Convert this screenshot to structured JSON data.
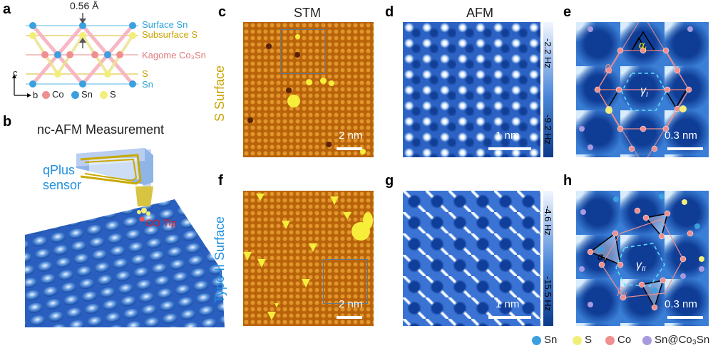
{
  "panel_labels": {
    "a": "a",
    "b": "b",
    "c": "c",
    "d": "d",
    "e": "e",
    "f": "f",
    "g": "g",
    "h": "h"
  },
  "panel_a": {
    "spacing": "0.56 Å",
    "layers": [
      {
        "text": "Surface Sn",
        "color": "#2aa3d8"
      },
      {
        "text": "Subsurface S",
        "color": "#c9a200"
      },
      {
        "text": "Kagome Co₃Sn",
        "color": "#e07a7a"
      },
      {
        "text": "S",
        "color": "#c9a200"
      },
      {
        "text": "Sn",
        "color": "#2aa3d8"
      }
    ],
    "axis_c": "c",
    "axis_b": "b",
    "legend": [
      {
        "text": "Co"
      },
      {
        "text": "Sn"
      },
      {
        "text": "S"
      }
    ]
  },
  "panel_b": {
    "title": "nc-AFM Measurement",
    "sensor_line1": "qPlus",
    "sensor_line2": "sensor",
    "tip": "CO Tip"
  },
  "columns": {
    "stm": "STM",
    "afm": "AFM"
  },
  "row_labels": {
    "top": "S Surface",
    "bottom": "Type-II Surface"
  },
  "scale_bars": {
    "c": "2 nm",
    "d": "1 nm",
    "e": "0.3 nm",
    "f": "2 nm",
    "g": "1 nm",
    "h": "0.3 nm"
  },
  "colorbars": {
    "d_top": "-2.2 Hz",
    "d_bottom": "-9.2 Hz",
    "g_top": "-4.6 Hz",
    "g_bottom": "-15.5 Hz"
  },
  "panel_e": {
    "alpha": "α",
    "alpha_sub": "I",
    "beta": "β",
    "beta_sub": "I",
    "gamma": "γ",
    "gamma_sub": "I"
  },
  "panel_h": {
    "alpha": "α",
    "alpha_sub": "II",
    "beta": "β",
    "beta_sub": "II",
    "gamma": "γ",
    "gamma_sub": "II"
  },
  "bottom_legend": [
    {
      "text": "Sn",
      "color": "#3aa0e0"
    },
    {
      "text": "S",
      "color": "#f2ee7a"
    },
    {
      "text": "Co",
      "color": "#ef8f8f"
    },
    {
      "text": "Sn@Co₃Sn",
      "color": "#a89ae0"
    }
  ]
}
